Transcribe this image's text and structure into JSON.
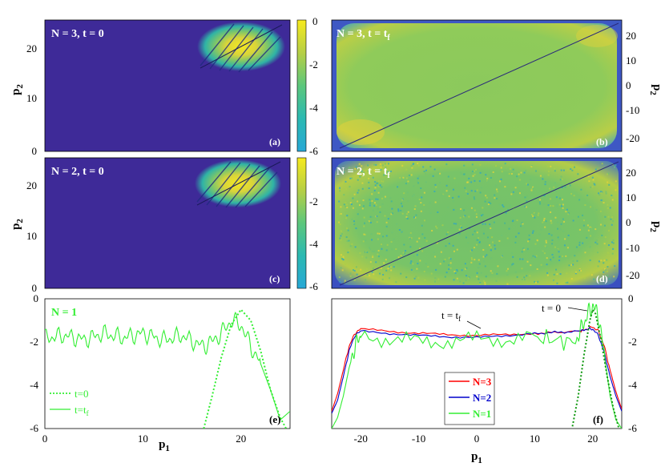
{
  "colors": {
    "dark": "#3e2a98",
    "low": "#2f3ea8",
    "mid": "#35b79b",
    "hi": "#a9d44a",
    "top": "#f4e822",
    "n3": "#ff0000",
    "n2": "#0000cc",
    "n1": "#33ee33"
  },
  "colorbar": {
    "ticks": [
      "0",
      "-2",
      "-4",
      "-6"
    ],
    "range": [
      -6,
      0
    ]
  },
  "panels": {
    "a": {
      "title": "N = 3, t = 0",
      "tag": "(a)",
      "xrange": [
        0,
        25
      ],
      "yrange": [
        0,
        25
      ]
    },
    "b": {
      "title": "N = 3, t = t",
      "title_sub": "f",
      "tag": "(b)",
      "xrange": [
        -25,
        25
      ],
      "yrange": [
        -25,
        25
      ]
    },
    "c": {
      "title": "N = 2, t = 0",
      "tag": "(c)",
      "xrange": [
        0,
        25
      ],
      "yrange": [
        0,
        25
      ]
    },
    "d": {
      "title": "N = 2, t = t",
      "title_sub": "f",
      "tag": "(d)",
      "xrange": [
        -25,
        25
      ],
      "yrange": [
        -25,
        25
      ]
    },
    "e": {
      "title": "N = 1",
      "tag": "(e)"
    },
    "f": {
      "tag": "(f)"
    }
  },
  "axes": {
    "p2": "p",
    "p2_sub": "2",
    "p1": "p",
    "p1_sub": "1",
    "left_y_ticks": [
      "0",
      "10",
      "20"
    ],
    "right_y_ticks": [
      "-20",
      "-10",
      "0",
      "10",
      "20"
    ],
    "e_y_ticks": [
      "0",
      "-2",
      "-4",
      "-6"
    ],
    "e_x_ticks": [
      "0",
      "10",
      "20"
    ],
    "f_x_ticks": [
      "-20",
      "-10",
      "0",
      "10",
      "20"
    ],
    "f_y_ticks": [
      "0",
      "-2",
      "-4",
      "-6"
    ]
  },
  "legend_e": {
    "items": [
      {
        "label": "t=0",
        "style": "dotted"
      },
      {
        "label": "t=t",
        "sub": "f",
        "style": "solid"
      }
    ]
  },
  "legend_f": {
    "items": [
      {
        "label": "N=3"
      },
      {
        "label": "N=2"
      },
      {
        "label": "N=1"
      }
    ]
  },
  "annotations_f": {
    "t0": "t = 0",
    "tf": "t = t",
    "tf_sub": "f"
  },
  "chart_data": [
    {
      "panel": "a",
      "type": "heatmap",
      "title": "N = 3, t = 0",
      "xlabel": "p1",
      "ylabel": "p2",
      "xlim": [
        0,
        25
      ],
      "ylim": [
        0,
        25
      ],
      "clim": [
        -6,
        0
      ],
      "feature": {
        "blob_center": [
          20,
          20
        ],
        "blob_peak": 0,
        "background": -6
      }
    },
    {
      "panel": "b",
      "type": "heatmap",
      "title": "N = 3, t = t_f",
      "xlabel": "p1",
      "ylabel": "p2",
      "xlim": [
        -25,
        25
      ],
      "ylim": [
        -25,
        25
      ],
      "clim": [
        -6,
        0
      ],
      "feature": {
        "plateau_level": -2,
        "diagonal_line": true,
        "background": -6
      }
    },
    {
      "panel": "c",
      "type": "heatmap",
      "title": "N = 2, t = 0",
      "xlabel": "p1",
      "ylabel": "p2",
      "xlim": [
        0,
        25
      ],
      "ylim": [
        0,
        25
      ],
      "clim": [
        -6,
        0
      ],
      "feature": {
        "blob_center": [
          20,
          20
        ],
        "blob_peak": 0,
        "background": -6
      }
    },
    {
      "panel": "d",
      "type": "heatmap",
      "title": "N = 2, t = t_f",
      "xlabel": "p1",
      "ylabel": "p2",
      "xlim": [
        -25,
        25
      ],
      "ylim": [
        -25,
        25
      ],
      "clim": [
        -6,
        0
      ],
      "feature": {
        "plateau_level": -2.5,
        "diagonal_line": true,
        "background": -6
      }
    },
    {
      "panel": "e",
      "type": "line",
      "title": "N = 1",
      "xlabel": "p1",
      "xlim": [
        0,
        25
      ],
      "ylim": [
        -6,
        0
      ],
      "series": [
        {
          "name": "t=0",
          "style": "dotted",
          "x": [
            16.2,
            17,
            18,
            19,
            20,
            21,
            22,
            23,
            24,
            24.6
          ],
          "y": [
            -6,
            -4.6,
            -2.7,
            -1.2,
            -0.5,
            -1.0,
            -2.4,
            -4.2,
            -5.5,
            -6
          ]
        },
        {
          "name": "t=t_f",
          "style": "solid",
          "x": [
            0,
            2,
            4,
            6,
            8,
            10,
            12,
            14,
            16,
            17,
            18,
            19,
            20,
            21,
            22,
            23,
            24,
            25
          ],
          "y": [
            -1.8,
            -1.7,
            -1.9,
            -1.6,
            -1.8,
            -1.6,
            -1.9,
            -1.7,
            -2.2,
            -2.0,
            -1.6,
            -1.0,
            -1.2,
            -2.2,
            -3.0,
            -4.2,
            -5.6,
            -5.2
          ]
        }
      ]
    },
    {
      "panel": "f",
      "type": "line",
      "xlabel": "p1",
      "xlim": [
        -25,
        25
      ],
      "ylim": [
        -6,
        0
      ],
      "series": [
        {
          "name": "N=3",
          "x": [
            -25,
            -24,
            -23,
            -22,
            -21,
            -20,
            -10,
            0,
            10,
            18,
            19,
            20,
            21,
            22,
            23,
            24,
            25
          ],
          "y": [
            -5.2,
            -4.4,
            -3.3,
            -2.2,
            -1.6,
            -1.4,
            -1.6,
            -1.7,
            -1.6,
            -1.5,
            -1.4,
            -1.3,
            -1.5,
            -2.2,
            -3.3,
            -4.3,
            -5.1
          ]
        },
        {
          "name": "N=2",
          "x": [
            -25,
            -24,
            -23,
            -22,
            -21,
            -20,
            -10,
            0,
            10,
            18,
            19,
            20,
            21,
            22,
            23,
            24,
            25
          ],
          "y": [
            -5.3,
            -4.7,
            -3.6,
            -2.4,
            -1.7,
            -1.5,
            -1.7,
            -1.8,
            -1.6,
            -1.5,
            -1.4,
            -1.4,
            -1.7,
            -2.5,
            -3.6,
            -4.5,
            -5.2
          ]
        },
        {
          "name": "N=1",
          "x": [
            -25,
            -24,
            -23,
            -22,
            -21,
            -20,
            -10,
            0,
            10,
            17,
            19,
            20,
            21,
            22,
            23,
            24,
            25
          ],
          "y": [
            -6,
            -5.5,
            -4.5,
            -3.2,
            -2.2,
            -1.7,
            -2.0,
            -1.9,
            -1.8,
            -2.0,
            -0.8,
            -0.3,
            -0.8,
            -2.6,
            -4.5,
            -5.6,
            -6
          ]
        },
        {
          "name": "t=0",
          "style": "dotted",
          "x": [
            16.5,
            17.5,
            18.5,
            19.5,
            20,
            20.5,
            21.5,
            22.5,
            23.5,
            24.5
          ],
          "y": [
            -5.9,
            -4.5,
            -2.6,
            -1.0,
            -0.5,
            -0.7,
            -2.0,
            -3.6,
            -5.0,
            -6
          ]
        }
      ]
    }
  ]
}
